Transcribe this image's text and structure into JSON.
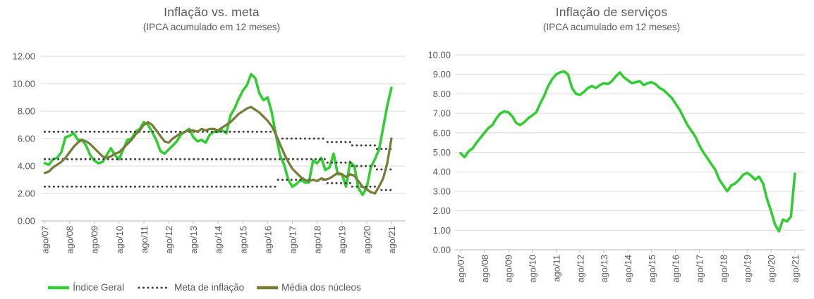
{
  "colors": {
    "green": "#32CD32",
    "olive": "#797D3B",
    "meta_dots": "#404040",
    "gridline": "#D9D9D9",
    "axis_line": "#C3C3C3",
    "text": "#595959"
  },
  "chart_data": [
    {
      "type": "line",
      "title": "Inflação vs. meta",
      "subtitle": "(IPCA acumulado em 12 meses)",
      "ylim": [
        0,
        12
      ],
      "ytick_step": 2,
      "grid": true,
      "legend_position": "bottom",
      "x_labels": [
        "ago/07",
        "ago/08",
        "ago/09",
        "ago/10",
        "ago/11",
        "ago/12",
        "ago/13",
        "ago/14",
        "ago/15",
        "ago/16",
        "ago/17",
        "ago/18",
        "ago/19",
        "ago/20",
        "ago/21"
      ],
      "series": [
        {
          "name": "Índice Geral",
          "color_key": "green",
          "style": "solid",
          "width": 3.6,
          "x_step_months": 2,
          "values": [
            4.2,
            4.1,
            4.5,
            4.6,
            5.0,
            6.1,
            6.2,
            6.4,
            5.9,
            5.9,
            5.5,
            4.8,
            4.4,
            4.2,
            4.3,
            4.8,
            5.3,
            4.8,
            4.5,
            5.2,
            5.9,
            6.0,
            6.5,
            6.7,
            7.2,
            7.0,
            6.5,
            5.9,
            5.1,
            4.9,
            5.2,
            5.5,
            5.8,
            6.3,
            6.5,
            6.7,
            6.1,
            5.8,
            5.9,
            5.7,
            6.3,
            6.5,
            6.5,
            6.6,
            6.4,
            7.7,
            8.2,
            8.9,
            9.5,
            9.9,
            10.7,
            10.4,
            9.3,
            8.8,
            9.0,
            7.9,
            6.3,
            4.8,
            4.1,
            3.0,
            2.5,
            2.7,
            3.0,
            2.8,
            2.8,
            4.4,
            4.2,
            4.6,
            3.7,
            3.9,
            4.9,
            3.4,
            3.4,
            2.5,
            4.3,
            4.0,
            2.4,
            1.9,
            2.4,
            3.9,
            4.5,
            5.2,
            6.8,
            8.4,
            9.7
          ]
        },
        {
          "name": "Meta de inflação",
          "color_key": "meta_dots",
          "style": "dotted",
          "width": 3,
          "segments": [
            {
              "m0": 0,
              "m1": 113,
              "value": 6.5
            },
            {
              "m0": 113,
              "m1": 137,
              "value": 6.0
            },
            {
              "m0": 137,
              "m1": 149,
              "value": 5.75
            },
            {
              "m0": 149,
              "m1": 161,
              "value": 5.5
            },
            {
              "m0": 161,
              "m1": 168,
              "value": 5.25
            },
            {
              "m0": 0,
              "m1": 137,
              "value": 4.5
            },
            {
              "m0": 137,
              "m1": 149,
              "value": 4.25
            },
            {
              "m0": 149,
              "m1": 161,
              "value": 4.0
            },
            {
              "m0": 161,
              "m1": 168,
              "value": 3.75
            },
            {
              "m0": 0,
              "m1": 113,
              "value": 2.5
            },
            {
              "m0": 113,
              "m1": 137,
              "value": 3.0
            },
            {
              "m0": 137,
              "m1": 149,
              "value": 2.75
            },
            {
              "m0": 149,
              "m1": 161,
              "value": 2.5
            },
            {
              "m0": 161,
              "m1": 168,
              "value": 2.25
            }
          ]
        },
        {
          "name": "Média dos núcleos",
          "color_key": "olive",
          "style": "solid",
          "width": 3.3,
          "x_step_months": 2,
          "values": [
            3.5,
            3.6,
            3.9,
            4.1,
            4.3,
            4.6,
            5.0,
            5.4,
            5.7,
            5.9,
            5.8,
            5.6,
            5.3,
            5.0,
            4.7,
            4.6,
            4.7,
            4.9,
            5.0,
            5.3,
            5.6,
            5.9,
            6.3,
            6.6,
            7.0,
            7.2,
            7.0,
            6.6,
            6.2,
            5.8,
            5.7,
            6.0,
            6.2,
            6.4,
            6.5,
            6.6,
            6.6,
            6.5,
            6.7,
            6.6,
            6.7,
            6.7,
            6.6,
            6.8,
            7.0,
            7.2,
            7.5,
            7.8,
            8.0,
            8.2,
            8.3,
            8.1,
            7.9,
            7.6,
            7.3,
            6.9,
            6.3,
            5.6,
            4.9,
            4.3,
            3.8,
            3.5,
            3.2,
            3.0,
            2.9,
            3.0,
            2.9,
            3.1,
            3.0,
            3.1,
            3.3,
            3.5,
            3.4,
            3.2,
            3.4,
            3.3,
            2.9,
            2.5,
            2.3,
            2.1,
            2.0,
            2.5,
            3.1,
            4.2,
            6.0
          ]
        }
      ],
      "legend": [
        {
          "label": "Índice Geral",
          "swatch": "solid",
          "color_key": "green"
        },
        {
          "label": "Meta de inflação",
          "swatch": "dotted",
          "color_key": "meta_dots"
        },
        {
          "label": "Média dos núcleos",
          "swatch": "solid",
          "color_key": "olive"
        }
      ]
    },
    {
      "type": "line",
      "title": "Inflação de serviços",
      "subtitle": "(IPCA acumulado em 12 meses)",
      "ylim": [
        0,
        10
      ],
      "ytick_step": 1,
      "grid": true,
      "legend_position": "none",
      "x_labels": [
        "ago/07",
        "ago/08",
        "ago/09",
        "ago/10",
        "ago/11",
        "ago/12",
        "ago/13",
        "ago/14",
        "ago/15",
        "ago/16",
        "ago/17",
        "ago/18",
        "ago/19",
        "ago/20",
        "ago/21"
      ],
      "series": [
        {
          "name": "Inflação de serviços",
          "color_key": "green",
          "style": "solid",
          "width": 3.6,
          "x_step_months": 2,
          "values": [
            4.95,
            4.75,
            5.05,
            5.2,
            5.5,
            5.75,
            6.0,
            6.25,
            6.4,
            6.75,
            7.0,
            7.1,
            7.05,
            6.85,
            6.5,
            6.4,
            6.55,
            6.75,
            6.9,
            7.05,
            7.5,
            7.9,
            8.4,
            8.75,
            9.0,
            9.1,
            9.15,
            9.0,
            8.3,
            8.0,
            7.95,
            8.1,
            8.3,
            8.4,
            8.3,
            8.45,
            8.55,
            8.5,
            8.65,
            8.9,
            9.1,
            8.85,
            8.7,
            8.55,
            8.6,
            8.65,
            8.45,
            8.55,
            8.6,
            8.5,
            8.3,
            8.2,
            8.0,
            7.8,
            7.5,
            7.2,
            6.8,
            6.4,
            6.1,
            5.8,
            5.35,
            5.0,
            4.7,
            4.4,
            4.1,
            3.6,
            3.3,
            3.0,
            3.3,
            3.4,
            3.6,
            3.85,
            3.95,
            3.8,
            3.6,
            3.75,
            3.4,
            2.6,
            2.0,
            1.3,
            0.95,
            1.55,
            1.45,
            1.7,
            3.9
          ]
        }
      ],
      "legend": []
    }
  ]
}
